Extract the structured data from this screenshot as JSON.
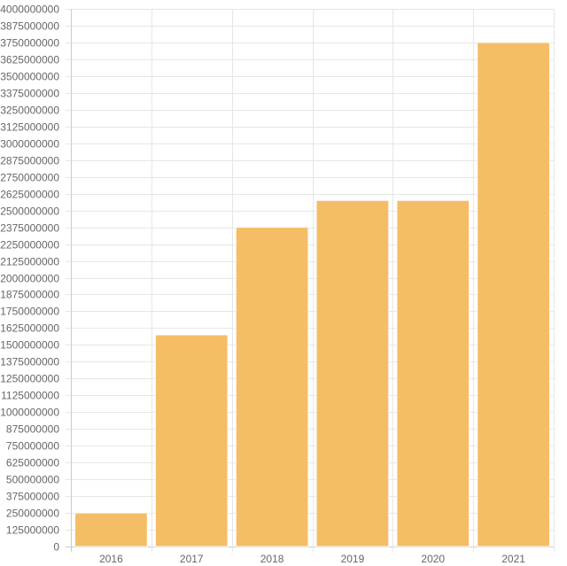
{
  "chart_data": {
    "type": "bar",
    "categories": [
      "2016",
      "2017",
      "2018",
      "2019",
      "2020",
      "2021"
    ],
    "values": [
      250000000,
      1575000000,
      2375000000,
      2575000000,
      2575000000,
      3750000000
    ],
    "ylim": [
      0,
      4000000000
    ],
    "ytick_step": 125000000,
    "ytick_labels": [
      "0",
      "125000000",
      "250000000",
      "375000000",
      "500000000",
      "625000000",
      "750000000",
      "875000000",
      "1000000000",
      "1125000000",
      "1250000000",
      "1375000000",
      "1500000000",
      "1625000000",
      "1750000000",
      "1875000000",
      "2000000000",
      "2125000000",
      "2250000000",
      "2375000000",
      "2500000000",
      "2625000000",
      "2750000000",
      "2875000000",
      "3000000000",
      "3125000000",
      "3250000000",
      "3375000000",
      "3500000000",
      "3625000000",
      "3750000000",
      "3875000000",
      "4000000000"
    ],
    "grid": true,
    "legend": "none",
    "bar_color": "#f5bd66",
    "bar_border_color": "#ffffff"
  }
}
